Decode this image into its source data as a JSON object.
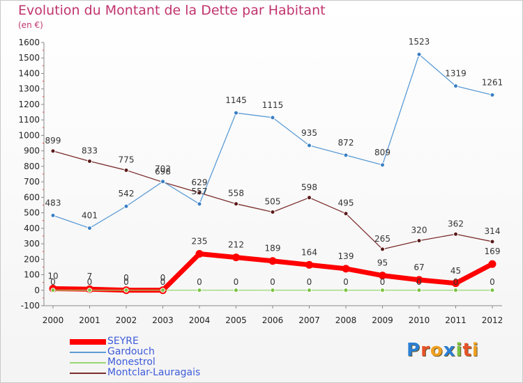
{
  "title": "Evolution du Montant de la Dette par Habitant",
  "subtitle": "(en €)",
  "logo": {
    "text": "Proxiti",
    "letters": [
      "P",
      "r",
      "o",
      "x",
      "i",
      "t",
      "i"
    ],
    "colors": [
      "#2a7fd4",
      "#e8522a",
      "#f0a020",
      "#2a7fd4",
      "#7cc242",
      "#e8522a",
      "#f0a020"
    ]
  },
  "chart_data": {
    "type": "line",
    "title": "Evolution du Montant de la Dette par Habitant",
    "subtitle": "(en €)",
    "x": [
      "2000",
      "2001",
      "2002",
      "2003",
      "2004",
      "2005",
      "2006",
      "2007",
      "2008",
      "2009",
      "2010",
      "2011",
      "2012"
    ],
    "ylim": [
      -100,
      1600
    ],
    "yticks": [
      -100,
      0,
      100,
      200,
      300,
      400,
      500,
      600,
      700,
      800,
      900,
      1000,
      1100,
      1200,
      1300,
      1400,
      1500,
      1600
    ],
    "grid": false,
    "legend_position": "bottom-left",
    "series": [
      {
        "name": "SEYRE",
        "color": "#ff0000",
        "values": [
          10,
          7,
          0,
          0,
          235,
          212,
          189,
          164,
          139,
          95,
          67,
          45,
          169
        ]
      },
      {
        "name": "Gardouch",
        "color": "#5b9bd5",
        "values": [
          483,
          401,
          542,
          702,
          557,
          1145,
          1115,
          935,
          872,
          809,
          1523,
          1319,
          1261
        ]
      },
      {
        "name": "Monestrol",
        "color": "#99d66f",
        "values": [
          0,
          0,
          0,
          0,
          0,
          0,
          0,
          0,
          0,
          0,
          0,
          0,
          0
        ]
      },
      {
        "name": "Montclar-Lauragais",
        "color": "#7b2c2c",
        "values": [
          899,
          833,
          775,
          698,
          629,
          558,
          505,
          598,
          495,
          265,
          320,
          362,
          314
        ]
      }
    ]
  }
}
